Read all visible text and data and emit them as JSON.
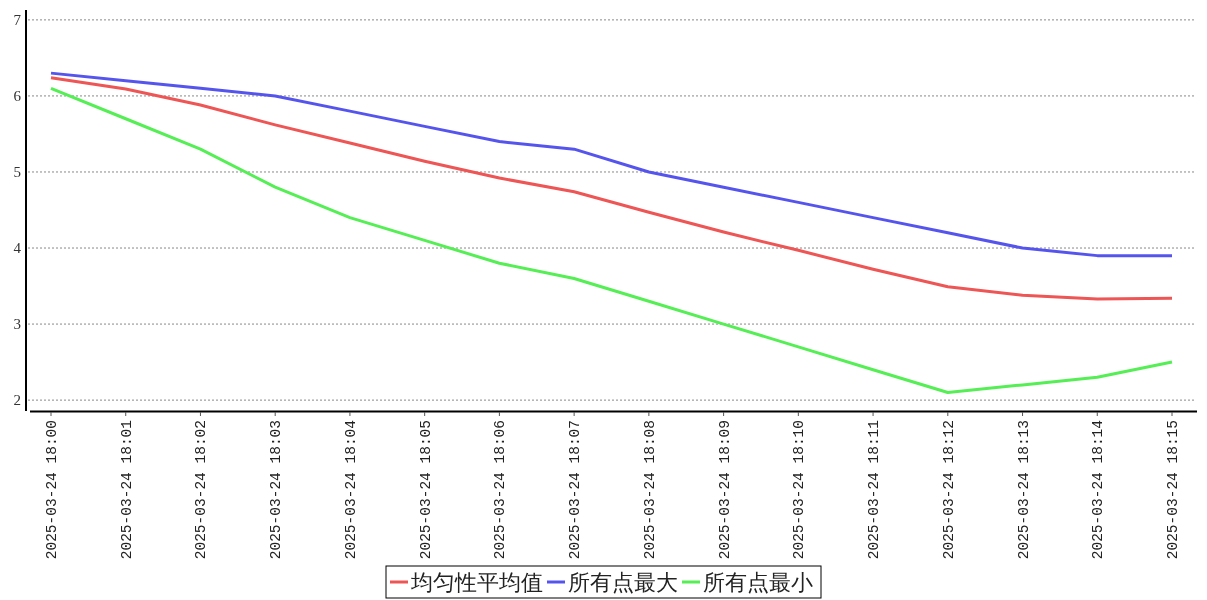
{
  "chart_data": {
    "type": "line",
    "categories": [
      "2025-03-24 18:00",
      "2025-03-24 18:01",
      "2025-03-24 18:02",
      "2025-03-24 18:03",
      "2025-03-24 18:04",
      "2025-03-24 18:05",
      "2025-03-24 18:06",
      "2025-03-24 18:07",
      "2025-03-24 18:08",
      "2025-03-24 18:09",
      "2025-03-24 18:10",
      "2025-03-24 18:11",
      "2025-03-24 18:12",
      "2025-03-24 18:13",
      "2025-03-24 18:14",
      "2025-03-24 18:15"
    ],
    "series": [
      {
        "name": "均匀性平均值",
        "color": "#ee5555",
        "values": [
          6.24,
          6.09,
          5.88,
          5.62,
          5.38,
          5.14,
          4.92,
          4.74,
          4.47,
          4.21,
          3.97,
          3.72,
          3.49,
          3.38,
          3.33,
          3.34
        ]
      },
      {
        "name": "所有点最大",
        "color": "#5555ee",
        "values": [
          6.3,
          6.2,
          6.1,
          6.0,
          5.8,
          5.6,
          5.4,
          5.3,
          5.0,
          4.8,
          4.6,
          4.4,
          4.2,
          4.0,
          3.9,
          3.9
        ]
      },
      {
        "name": "所有点最小",
        "color": "#55ee55",
        "values": [
          6.1,
          5.7,
          5.3,
          4.8,
          4.4,
          4.1,
          3.8,
          3.6,
          3.3,
          3.0,
          2.7,
          2.4,
          2.1,
          2.2,
          2.3,
          2.5
        ]
      }
    ],
    "ylim": [
      1.87,
      7.13
    ],
    "yticks": [
      2,
      3,
      4,
      5,
      6,
      7
    ],
    "grid": "y",
    "legend": "bottom"
  }
}
